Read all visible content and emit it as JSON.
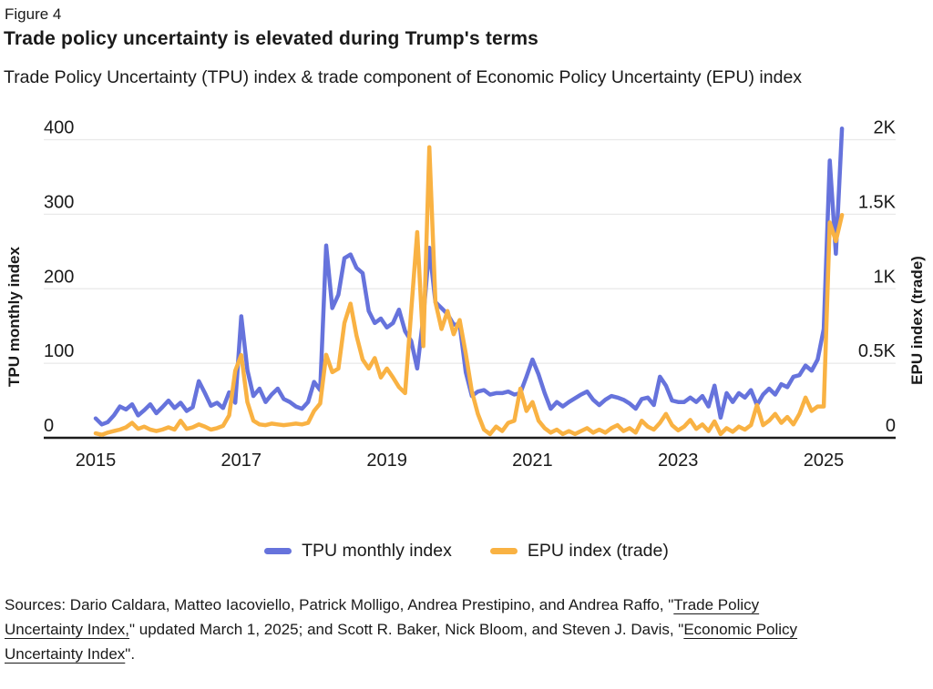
{
  "figure_label": "Figure 4",
  "title": "Trade policy uncertainty is elevated during Trump's terms",
  "subtitle": "Trade Policy Uncertainty (TPU) index & trade component of Economic Policy Uncertainty (EPU) index",
  "colors": {
    "tpu": "#6673DC",
    "epu": "#F9B243",
    "grid": "#E9E9E9",
    "axis": "#1C1C1C",
    "text": "#1A1A1A"
  },
  "chart_data": {
    "type": "line",
    "title": "Trade policy uncertainty is elevated during Trump's terms",
    "subtitle": "Trade Policy Uncertainty (TPU) index & trade component of Economic Policy Uncertainty (EPU) index",
    "x_start": "2015-01",
    "x_end": "2025-04",
    "x_step": "monthly",
    "x_ticks": [
      2015,
      2017,
      2019,
      2021,
      2023,
      2025
    ],
    "grid": "horizontal",
    "legend_position": "bottom",
    "left_axis": {
      "title": "TPU monthly index",
      "range": [
        0,
        400
      ],
      "ticks": [
        0,
        100,
        200,
        300,
        400
      ],
      "tick_labels": [
        "0",
        "100",
        "200",
        "300",
        "400"
      ]
    },
    "right_axis": {
      "title": "EPU index (trade)",
      "range": [
        0,
        2000
      ],
      "ticks": [
        0,
        500,
        1000,
        1500,
        2000
      ],
      "tick_labels": [
        "0",
        "0.5K",
        "1K",
        "1.5K",
        "2K"
      ]
    },
    "series": [
      {
        "name": "TPU monthly index",
        "axis": "left",
        "color": "#6673DC",
        "values": [
          26,
          18,
          21,
          30,
          42,
          38,
          45,
          30,
          37,
          45,
          33,
          41,
          50,
          40,
          47,
          36,
          41,
          76,
          60,
          43,
          47,
          40,
          61,
          47,
          163,
          91,
          56,
          66,
          48,
          58,
          66,
          52,
          48,
          42,
          39,
          48,
          75,
          64,
          258,
          174,
          192,
          241,
          246,
          228,
          221,
          170,
          154,
          160,
          148,
          154,
          172,
          143,
          130,
          93,
          162,
          255,
          182,
          174,
          166,
          152,
          152,
          88,
          56,
          62,
          64,
          58,
          60,
          60,
          62,
          58,
          60,
          82,
          105,
          85,
          60,
          39,
          48,
          42,
          48,
          53,
          58,
          62,
          51,
          44,
          51,
          56,
          54,
          51,
          46,
          39,
          52,
          54,
          44,
          82,
          70,
          50,
          48,
          48,
          54,
          48,
          56,
          42,
          70,
          27,
          60,
          48,
          60,
          54,
          64,
          44,
          58,
          66,
          58,
          72,
          68,
          82,
          84,
          97,
          90,
          105,
          146,
          372,
          247,
          415
        ]
      },
      {
        "name": "EPU index (trade)",
        "axis": "right",
        "color": "#F9B243",
        "values": [
          30,
          20,
          35,
          45,
          55,
          70,
          100,
          60,
          75,
          55,
          45,
          55,
          70,
          55,
          115,
          60,
          70,
          90,
          75,
          55,
          65,
          80,
          150,
          450,
          555,
          240,
          115,
          90,
          85,
          95,
          90,
          85,
          90,
          95,
          90,
          100,
          180,
          230,
          557,
          440,
          465,
          770,
          900,
          685,
          525,
          465,
          535,
          405,
          465,
          405,
          340,
          300,
          850,
          1380,
          615,
          1950,
          910,
          730,
          850,
          695,
          790,
          565,
          310,
          160,
          55,
          25,
          75,
          45,
          100,
          115,
          330,
          180,
          240,
          115,
          65,
          35,
          55,
          25,
          45,
          25,
          45,
          65,
          35,
          55,
          35,
          65,
          85,
          45,
          65,
          35,
          115,
          75,
          55,
          100,
          160,
          85,
          50,
          75,
          120,
          60,
          90,
          45,
          110,
          25,
          65,
          40,
          75,
          55,
          85,
          220,
          85,
          115,
          160,
          100,
          140,
          90,
          160,
          270,
          180,
          210,
          210,
          1445,
          1320,
          1495
        ]
      }
    ]
  },
  "legend": [
    {
      "label": "TPU monthly index",
      "color": "#6673DC"
    },
    {
      "label": "EPU index (trade)",
      "color": "#F9B243"
    }
  ],
  "sources": {
    "part1": "Sources: Dario Caldara, Matteo Iacoviello, Patrick Molligo, Andrea Prestipino, and Andrea Raffo, \"",
    "link1_line1": "Trade Policy",
    "link1_line2": "Uncertainty Index,",
    "part2": "\" updated March 1, 2025; and Scott R. Baker, Nick Bloom, and Steven J. Davis, \"",
    "link2_line1": "Economic Policy",
    "link2_line2": "Uncertainty Index",
    "part3": "\"."
  }
}
